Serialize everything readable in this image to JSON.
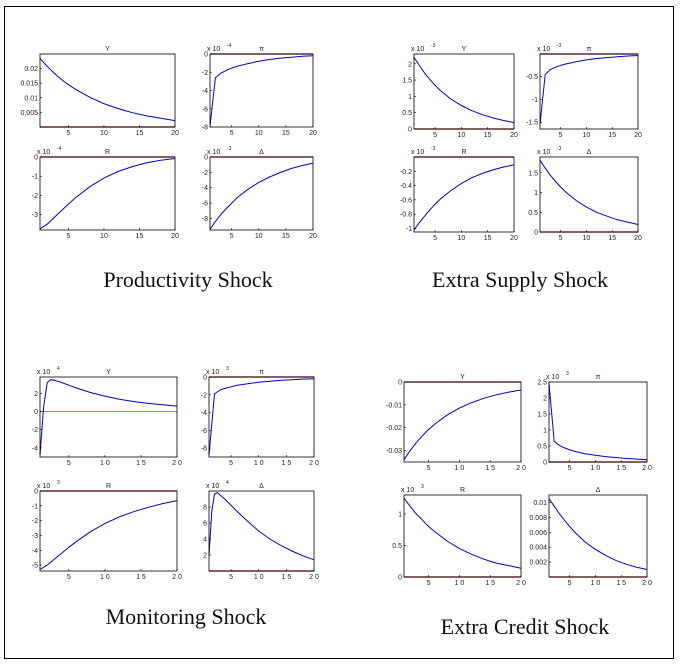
{
  "colors": {
    "line": "#0000cc",
    "zero_line": "#aa0000",
    "zero_line_light": "#ff6666",
    "border": "#000000"
  },
  "groups": [
    {
      "caption": "Productivity Shock"
    },
    {
      "caption": "Extra Supply Shock"
    },
    {
      "caption": "Monitoring Shock"
    },
    {
      "caption": "Extra Credit Shock"
    }
  ],
  "chart_data": [
    {
      "type": "line",
      "group": 0,
      "title": "Y",
      "multiplier": "",
      "xlim": [
        1,
        20
      ],
      "ylim": [
        0,
        0.025
      ],
      "xticks": [
        5,
        10,
        15,
        20
      ],
      "xtick_labels": [
        "5",
        "10",
        "15",
        "20"
      ],
      "yticks": [
        0.005,
        0.01,
        0.015,
        0.02
      ],
      "ytick_labels": [
        "0.005",
        "0.01",
        "0.015",
        "0.02"
      ],
      "series": [
        {
          "x": [
            1,
            2,
            3,
            4,
            5,
            6,
            8,
            10,
            12,
            14,
            16,
            18,
            20
          ],
          "values": [
            0.0235,
            0.0208,
            0.0184,
            0.0163,
            0.0145,
            0.0129,
            0.0102,
            0.008,
            0.0063,
            0.0049,
            0.0038,
            0.003,
            0.0022
          ]
        }
      ],
      "zero_line": 0
    },
    {
      "type": "line",
      "group": 0,
      "title": "π",
      "multiplier": "x 10",
      "multiplier_exp": "-4",
      "xlim": [
        1,
        20
      ],
      "ylim": [
        -8,
        0
      ],
      "xticks": [
        5,
        10,
        15,
        20
      ],
      "xtick_labels": [
        "5",
        "10",
        "15",
        "20"
      ],
      "yticks": [
        -8,
        -6,
        -4,
        -2,
        0
      ],
      "ytick_labels": [
        "-8",
        "-6",
        "-4",
        "-2",
        "0"
      ],
      "series": [
        {
          "x": [
            1,
            2,
            3,
            4,
            5,
            6,
            8,
            10,
            12,
            14,
            16,
            18,
            20
          ],
          "values": [
            -7.9,
            -2.6,
            -2.1,
            -1.8,
            -1.55,
            -1.35,
            -1.05,
            -0.8,
            -0.6,
            -0.45,
            -0.35,
            -0.25,
            -0.2
          ]
        }
      ],
      "zero_line": 0
    },
    {
      "type": "line",
      "group": 0,
      "title": "R",
      "multiplier": "x 10",
      "multiplier_exp": "-4",
      "xlim": [
        1,
        20
      ],
      "ylim": [
        -3.8,
        0
      ],
      "xticks": [
        5,
        10,
        15,
        20
      ],
      "xtick_labels": [
        "5",
        "10",
        "15",
        "20"
      ],
      "yticks": [
        -3,
        -2,
        -1,
        0
      ],
      "ytick_labels": [
        "-3",
        "-2",
        "-1",
        "0"
      ],
      "series": [
        {
          "x": [
            1,
            2,
            3,
            4,
            5,
            6,
            8,
            10,
            12,
            14,
            16,
            18,
            20
          ],
          "values": [
            -3.75,
            -3.5,
            -3.15,
            -2.8,
            -2.45,
            -2.12,
            -1.55,
            -1.1,
            -0.75,
            -0.5,
            -0.3,
            -0.17,
            -0.08
          ]
        }
      ],
      "zero_line": 0
    },
    {
      "type": "line",
      "group": 0,
      "title": "Δ",
      "multiplier": "x 10",
      "multiplier_exp": "-3",
      "xlim": [
        1,
        20
      ],
      "ylim": [
        -9.5,
        0
      ],
      "xticks": [
        5,
        10,
        15,
        20
      ],
      "xtick_labels": [
        "5",
        "10",
        "15",
        "20"
      ],
      "yticks": [
        -8,
        -6,
        -4,
        -2,
        0
      ],
      "ytick_labels": [
        "-8",
        "-6",
        "-4",
        "-2",
        "0"
      ],
      "series": [
        {
          "x": [
            1,
            2,
            3,
            4,
            5,
            6,
            8,
            10,
            12,
            14,
            16,
            18,
            20
          ],
          "values": [
            -9.4,
            -8.4,
            -7.5,
            -6.7,
            -6.0,
            -5.3,
            -4.2,
            -3.3,
            -2.6,
            -2.0,
            -1.5,
            -1.1,
            -0.8
          ]
        }
      ],
      "zero_line": 0
    },
    {
      "type": "line",
      "group": 1,
      "title": "Y",
      "multiplier": "x 10",
      "multiplier_exp": "-3",
      "xlim": [
        1,
        20
      ],
      "ylim": [
        0,
        2.3
      ],
      "xticks": [
        5,
        10,
        15,
        20
      ],
      "xtick_labels": [
        "5",
        "10",
        "15",
        "20"
      ],
      "yticks": [
        0,
        0.5,
        1,
        1.5,
        2
      ],
      "ytick_labels": [
        "0",
        "0.5",
        "1",
        "1.5",
        "2"
      ],
      "series": [
        {
          "x": [
            1,
            2,
            3,
            4,
            5,
            6,
            8,
            10,
            12,
            14,
            16,
            18,
            20
          ],
          "values": [
            2.2,
            1.95,
            1.72,
            1.52,
            1.34,
            1.18,
            0.92,
            0.72,
            0.56,
            0.44,
            0.34,
            0.26,
            0.2
          ]
        }
      ],
      "zero_line": 0
    },
    {
      "type": "line",
      "group": 1,
      "title": "π",
      "multiplier": "x 10",
      "multiplier_exp": "-3",
      "xlim": [
        1,
        20
      ],
      "ylim": [
        -1.65,
        0
      ],
      "xticks": [
        5,
        10,
        15,
        20
      ],
      "xtick_labels": [
        "5",
        "10",
        "15",
        "20"
      ],
      "yticks": [
        -1.5,
        -1,
        -0.5
      ],
      "ytick_labels": [
        "-1.5",
        "-1",
        "-0.5"
      ],
      "series": [
        {
          "x": [
            1,
            2,
            3,
            4,
            5,
            6,
            8,
            10,
            12,
            14,
            16,
            18,
            20
          ],
          "values": [
            -1.55,
            -0.45,
            -0.34,
            -0.29,
            -0.25,
            -0.22,
            -0.17,
            -0.13,
            -0.1,
            -0.08,
            -0.06,
            -0.045,
            -0.035
          ]
        }
      ],
      "zero_line": 0
    },
    {
      "type": "line",
      "group": 1,
      "title": "R",
      "multiplier": "x 10",
      "multiplier_exp": "-3",
      "xlim": [
        1,
        20
      ],
      "ylim": [
        -1.05,
        0
      ],
      "xticks": [
        5,
        10,
        15,
        20
      ],
      "xtick_labels": [
        "5",
        "10",
        "15",
        "20"
      ],
      "yticks": [
        -1,
        -0.8,
        -0.6,
        -0.4,
        -0.2
      ],
      "ytick_labels": [
        "-1",
        "-0.8",
        "-0.6",
        "-0.4",
        "-0.2"
      ],
      "series": [
        {
          "x": [
            1,
            2,
            3,
            4,
            5,
            6,
            8,
            10,
            12,
            14,
            16,
            18,
            20
          ],
          "values": [
            -1.02,
            -0.92,
            -0.83,
            -0.74,
            -0.66,
            -0.59,
            -0.47,
            -0.37,
            -0.29,
            -0.23,
            -0.18,
            -0.14,
            -0.11
          ]
        }
      ],
      "zero_line": 0
    },
    {
      "type": "line",
      "group": 1,
      "title": "Δ",
      "multiplier": "x 10",
      "multiplier_exp": "-3",
      "xlim": [
        1,
        20
      ],
      "ylim": [
        0,
        1.9
      ],
      "xticks": [
        5,
        10,
        15,
        20
      ],
      "xtick_labels": [
        "5",
        "10",
        "15",
        "20"
      ],
      "yticks": [
        0,
        0.5,
        1,
        1.5
      ],
      "ytick_labels": [
        "0",
        "0.5",
        "1",
        "1.5"
      ],
      "series": [
        {
          "x": [
            1,
            2,
            3,
            4,
            5,
            6,
            8,
            10,
            12,
            14,
            16,
            18,
            20
          ],
          "values": [
            1.82,
            1.62,
            1.44,
            1.28,
            1.14,
            1.01,
            0.8,
            0.63,
            0.5,
            0.4,
            0.31,
            0.25,
            0.19
          ]
        }
      ],
      "zero_line": 0
    },
    {
      "type": "line",
      "group": 2,
      "title": "Y",
      "multiplier": "x 10",
      "multiplier_exp": "4",
      "xlim": [
        1,
        20
      ],
      "ylim": [
        -5,
        3.8
      ],
      "xticks": [
        5,
        10,
        15,
        20
      ],
      "xtick_labels": [
        "5",
        "1 0",
        "1 5",
        "2 0"
      ],
      "yticks": [
        -4,
        -2,
        0,
        2
      ],
      "ytick_labels": [
        "-4",
        "-2",
        "0",
        "2"
      ],
      "series": [
        {
          "x": [
            1,
            1.5,
            2,
            2.5,
            3,
            4,
            5,
            6,
            8,
            10,
            12,
            14,
            16,
            18,
            20
          ],
          "values": [
            -4.8,
            0.5,
            3.2,
            3.5,
            3.45,
            3.2,
            2.9,
            2.6,
            2.1,
            1.7,
            1.35,
            1.1,
            0.9,
            0.75,
            0.6
          ]
        }
      ],
      "zero_line": 0,
      "zero_line_style": "light"
    },
    {
      "type": "line",
      "group": 2,
      "title": "π",
      "multiplier": "x 10",
      "multiplier_exp": "3",
      "xlim": [
        1,
        20
      ],
      "ylim": [
        -9,
        0
      ],
      "xticks": [
        5,
        10,
        15,
        20
      ],
      "xtick_labels": [
        "5",
        "1 0",
        "1 5",
        "2 0"
      ],
      "yticks": [
        -8,
        -6,
        -4,
        -2,
        0
      ],
      "ytick_labels": [
        "-8",
        "-6",
        "-4",
        "-2",
        "0"
      ],
      "series": [
        {
          "x": [
            1,
            2,
            3,
            4,
            5,
            6,
            8,
            10,
            12,
            14,
            16,
            18,
            20
          ],
          "values": [
            -8.8,
            -1.9,
            -1.45,
            -1.25,
            -1.1,
            -0.95,
            -0.75,
            -0.6,
            -0.47,
            -0.37,
            -0.3,
            -0.24,
            -0.2
          ]
        }
      ],
      "zero_line": 0
    },
    {
      "type": "line",
      "group": 2,
      "title": "R",
      "multiplier": "x 10",
      "multiplier_exp": "3",
      "xlim": [
        1,
        20
      ],
      "ylim": [
        -5.4,
        0
      ],
      "xticks": [
        5,
        10,
        15,
        20
      ],
      "xtick_labels": [
        "5",
        "1 0",
        "1 5",
        "2 0"
      ],
      "yticks": [
        -5,
        -4,
        -3,
        -2,
        -1,
        0
      ],
      "ytick_labels": [
        "-5",
        "-4",
        "-3",
        "-2",
        "-1",
        "0"
      ],
      "series": [
        {
          "x": [
            1,
            2,
            3,
            4,
            5,
            6,
            8,
            10,
            12,
            14,
            16,
            18,
            20
          ],
          "values": [
            -5.3,
            -5.0,
            -4.6,
            -4.2,
            -3.8,
            -3.42,
            -2.75,
            -2.2,
            -1.75,
            -1.4,
            -1.1,
            -0.85,
            -0.65
          ]
        }
      ],
      "zero_line": 0
    },
    {
      "type": "line",
      "group": 2,
      "title": "Δ",
      "multiplier": "x 10",
      "multiplier_exp": "4",
      "xlim": [
        1,
        20
      ],
      "ylim": [
        0,
        10
      ],
      "xticks": [
        5,
        10,
        15,
        20
      ],
      "xtick_labels": [
        "5",
        "1 0",
        "1 5",
        "2 0"
      ],
      "yticks": [
        2,
        4,
        6,
        8
      ],
      "ytick_labels": [
        "2",
        "4",
        "6",
        "8"
      ],
      "series": [
        {
          "x": [
            1,
            1.5,
            2,
            2.5,
            3,
            4,
            5,
            6,
            8,
            10,
            12,
            14,
            16,
            18,
            20
          ],
          "values": [
            2.0,
            7.5,
            9.6,
            9.8,
            9.5,
            8.9,
            8.2,
            7.5,
            6.2,
            5.0,
            4.0,
            3.2,
            2.5,
            1.9,
            1.4
          ]
        }
      ],
      "zero_line": 0
    },
    {
      "type": "line",
      "group": 3,
      "title": "Y",
      "multiplier": "",
      "xlim": [
        1,
        20
      ],
      "ylim": [
        -0.035,
        0
      ],
      "xticks": [
        5,
        10,
        15,
        20
      ],
      "xtick_labels": [
        "5",
        "1 0",
        "1 5",
        "2 0"
      ],
      "yticks": [
        -0.03,
        -0.02,
        -0.01,
        0
      ],
      "ytick_labels": [
        "-0.03",
        "-0.02",
        "-0.01",
        "0"
      ],
      "series": [
        {
          "x": [
            1,
            2,
            3,
            4,
            5,
            6,
            8,
            10,
            12,
            14,
            16,
            18,
            20
          ],
          "values": [
            -0.034,
            -0.03,
            -0.0265,
            -0.0235,
            -0.0208,
            -0.0184,
            -0.0145,
            -0.0114,
            -0.009,
            -0.0071,
            -0.0056,
            -0.0044,
            -0.0035
          ]
        }
      ],
      "zero_line": 0
    },
    {
      "type": "line",
      "group": 3,
      "title": "π",
      "multiplier": "x 10",
      "multiplier_exp": "3",
      "xlim": [
        1,
        20
      ],
      "ylim": [
        0,
        2.5
      ],
      "xticks": [
        5,
        10,
        15,
        20
      ],
      "xtick_labels": [
        "5",
        "1 0",
        "1 5",
        "2 0"
      ],
      "yticks": [
        0,
        0.5,
        1,
        1.5,
        2,
        2.5
      ],
      "ytick_labels": [
        "0",
        "0.5",
        "1",
        "1.5",
        "2",
        "2.5"
      ],
      "series": [
        {
          "x": [
            1,
            2,
            3,
            4,
            5,
            6,
            8,
            10,
            12,
            14,
            16,
            18,
            20
          ],
          "values": [
            2.45,
            0.65,
            0.52,
            0.44,
            0.38,
            0.33,
            0.26,
            0.21,
            0.17,
            0.14,
            0.11,
            0.09,
            0.07
          ]
        }
      ],
      "zero_line": 0
    },
    {
      "type": "line",
      "group": 3,
      "title": "R",
      "multiplier": "x 10",
      "multiplier_exp": "3",
      "xlim": [
        1,
        20
      ],
      "ylim": [
        0,
        1.3
      ],
      "xticks": [
        5,
        10,
        15,
        20
      ],
      "xtick_labels": [
        "5",
        "1 0",
        "1 5",
        "2 0"
      ],
      "yticks": [
        0,
        0.5,
        1
      ],
      "ytick_labels": [
        "0",
        "0.5",
        "1"
      ],
      "series": [
        {
          "x": [
            1,
            2,
            3,
            4,
            5,
            6,
            8,
            10,
            12,
            14,
            16,
            18,
            20
          ],
          "values": [
            1.25,
            1.12,
            1.0,
            0.9,
            0.8,
            0.72,
            0.57,
            0.45,
            0.36,
            0.28,
            0.22,
            0.18,
            0.14
          ]
        }
      ],
      "zero_line": 0
    },
    {
      "type": "line",
      "group": 3,
      "title": "Δ",
      "multiplier": "",
      "xlim": [
        1,
        20
      ],
      "ylim": [
        0,
        0.011
      ],
      "xticks": [
        5,
        10,
        15,
        20
      ],
      "xtick_labels": [
        "5",
        "1 0",
        "1 5",
        "2 0"
      ],
      "yticks": [
        0.002,
        0.004,
        0.006,
        0.008,
        0.01
      ],
      "ytick_labels": [
        "0.002",
        "0.004",
        "0.006",
        "0.008",
        "0.01"
      ],
      "series": [
        {
          "x": [
            1,
            2,
            3,
            4,
            5,
            6,
            8,
            10,
            12,
            14,
            16,
            18,
            20
          ],
          "values": [
            0.0105,
            0.0095,
            0.0085,
            0.0076,
            0.0068,
            0.006,
            0.0047,
            0.0037,
            0.0029,
            0.0022,
            0.0017,
            0.0013,
            0.001
          ]
        }
      ],
      "zero_line": 0
    }
  ]
}
